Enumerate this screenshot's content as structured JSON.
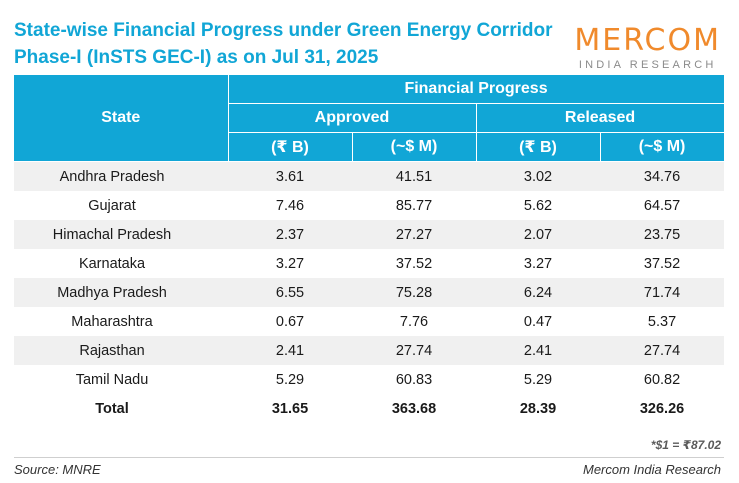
{
  "title": {
    "line1": "State-wise Financial Progress under Green Energy Corridor",
    "line2": "Phase-I (InSTS GEC-I) as on Jul 31, 2025"
  },
  "logo": {
    "main": "MERCOM",
    "sub": "INDIA RESEARCH"
  },
  "colors": {
    "header_bg": "#11a6d6",
    "title": "#11a6d6",
    "logo_orange": "#f08a2c",
    "row_stripe": "#f0f0f0"
  },
  "table": {
    "state_header": "State",
    "group_header": "Financial Progress",
    "approved_header": "Approved",
    "released_header": "Released",
    "unit_inr": "(₹ B)",
    "unit_usd": "(~$ M)",
    "rows": [
      {
        "state": "Andhra Pradesh",
        "approved_inr": "3.61",
        "approved_usd": "41.51",
        "released_inr": "3.02",
        "released_usd": "34.76"
      },
      {
        "state": "Gujarat",
        "approved_inr": "7.46",
        "approved_usd": "85.77",
        "released_inr": "5.62",
        "released_usd": "64.57"
      },
      {
        "state": "Himachal Pradesh",
        "approved_inr": "2.37",
        "approved_usd": "27.27",
        "released_inr": "2.07",
        "released_usd": "23.75"
      },
      {
        "state": "Karnataka",
        "approved_inr": "3.27",
        "approved_usd": "37.52",
        "released_inr": "3.27",
        "released_usd": "37.52"
      },
      {
        "state": "Madhya Pradesh",
        "approved_inr": "6.55",
        "approved_usd": "75.28",
        "released_inr": "6.24",
        "released_usd": "71.74"
      },
      {
        "state": "Maharashtra",
        "approved_inr": "0.67",
        "approved_usd": "7.76",
        "released_inr": "0.47",
        "released_usd": "5.37"
      },
      {
        "state": "Rajasthan",
        "approved_inr": "2.41",
        "approved_usd": "27.74",
        "released_inr": "2.41",
        "released_usd": "27.74"
      },
      {
        "state": "Tamil Nadu",
        "approved_inr": "5.29",
        "approved_usd": "60.83",
        "released_inr": "5.29",
        "released_usd": "60.82"
      }
    ],
    "total": {
      "state": "Total",
      "approved_inr": "31.65",
      "approved_usd": "363.68",
      "released_inr": "28.39",
      "released_usd": "326.26"
    }
  },
  "footnote": "*$1 = ₹87.02",
  "source": "Source: MNRE",
  "credit": "Mercom India Research"
}
